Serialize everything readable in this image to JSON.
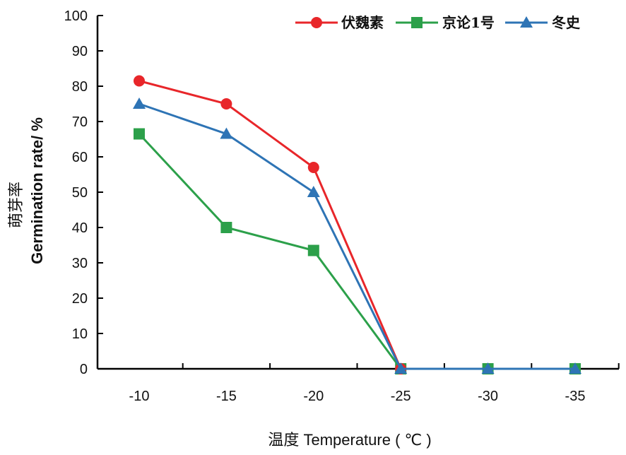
{
  "chart_data": {
    "type": "line",
    "x": [
      "-10",
      "-15",
      "-20",
      "-25",
      "-30",
      "-35"
    ],
    "series": [
      {
        "name": "伏魏素",
        "color": "#e8262a",
        "marker": "circle",
        "values": [
          81.5,
          75,
          57,
          0,
          null,
          null
        ]
      },
      {
        "name": "京论1号",
        "color": "#2ca04a",
        "marker": "square",
        "values": [
          66.5,
          40,
          33.5,
          0,
          0,
          0
        ]
      },
      {
        "name": "冬史",
        "color": "#2e74b5",
        "marker": "triangle",
        "values": [
          75,
          66.5,
          50,
          0,
          0,
          0
        ]
      }
    ],
    "xlabel": "温度 Temperature ( ℃ )",
    "ylabel_cn": "萌芽率",
    "ylabel": "Germination rate/ %",
    "ylim": [
      0,
      100
    ],
    "yticks": [
      "0",
      "10",
      "20",
      "30",
      "40",
      "50",
      "60",
      "70",
      "80",
      "90",
      "100"
    ],
    "grid": false,
    "legend_position": "top-right"
  }
}
